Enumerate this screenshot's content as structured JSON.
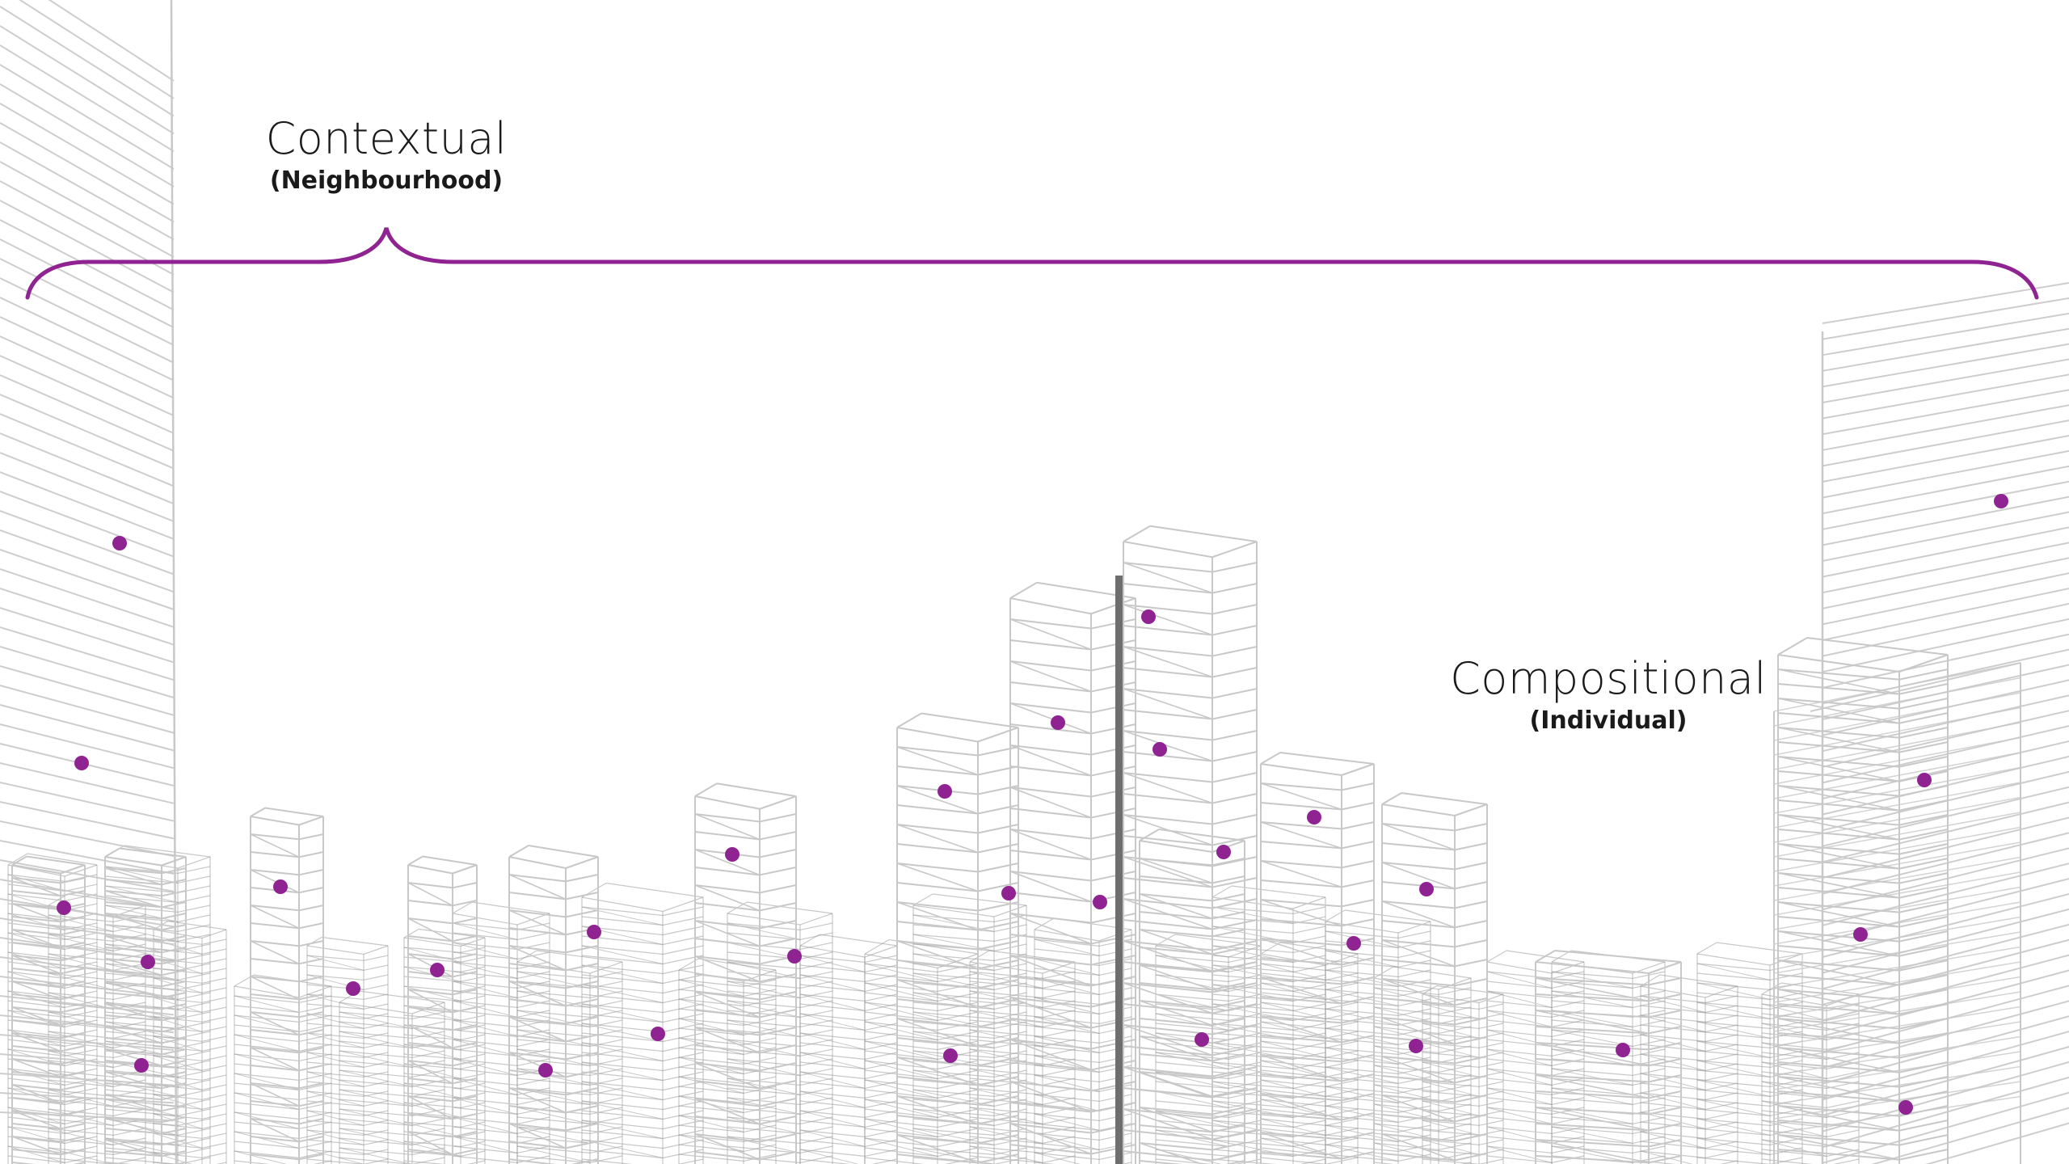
{
  "labels": {
    "contextual": {
      "title": "Contextual",
      "subtitle": "(Neighbourhood)"
    },
    "compositional": {
      "title": "Compositional",
      "subtitle": "(Individual)"
    }
  },
  "colors": {
    "accent": "#8e2391",
    "building_line": "#c8c8c8",
    "building_line_dense": "#9a9a9a",
    "pole": "#6e6e6e",
    "text": "#1a1a1a",
    "background": "#ffffff"
  }
}
